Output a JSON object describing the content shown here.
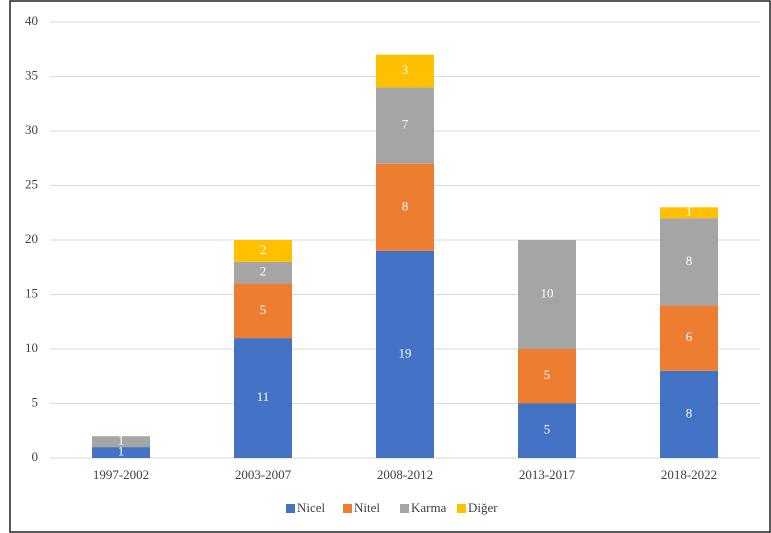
{
  "chart_data": {
    "type": "stacked_bar",
    "categories": [
      "1997-2002",
      "2003-2007",
      "2008-2012",
      "2013-2017",
      "2018-2022"
    ],
    "series": [
      {
        "name": "Nicel",
        "color": "#4472c4",
        "values": [
          1,
          11,
          19,
          5,
          8
        ]
      },
      {
        "name": "Nitel",
        "color": "#ed7d31",
        "values": [
          0,
          5,
          8,
          5,
          6
        ]
      },
      {
        "name": "Karma",
        "color": "#a5a5a5",
        "values": [
          1,
          2,
          7,
          10,
          8
        ]
      },
      {
        "name": "Diğer",
        "color": "#ffc000",
        "values": [
          0,
          2,
          3,
          0,
          1
        ]
      }
    ],
    "ylim": [
      0,
      40
    ],
    "yticks": [
      0,
      5,
      10,
      15,
      20,
      25,
      30,
      35,
      40
    ],
    "grid": true,
    "legend": "bottom"
  }
}
